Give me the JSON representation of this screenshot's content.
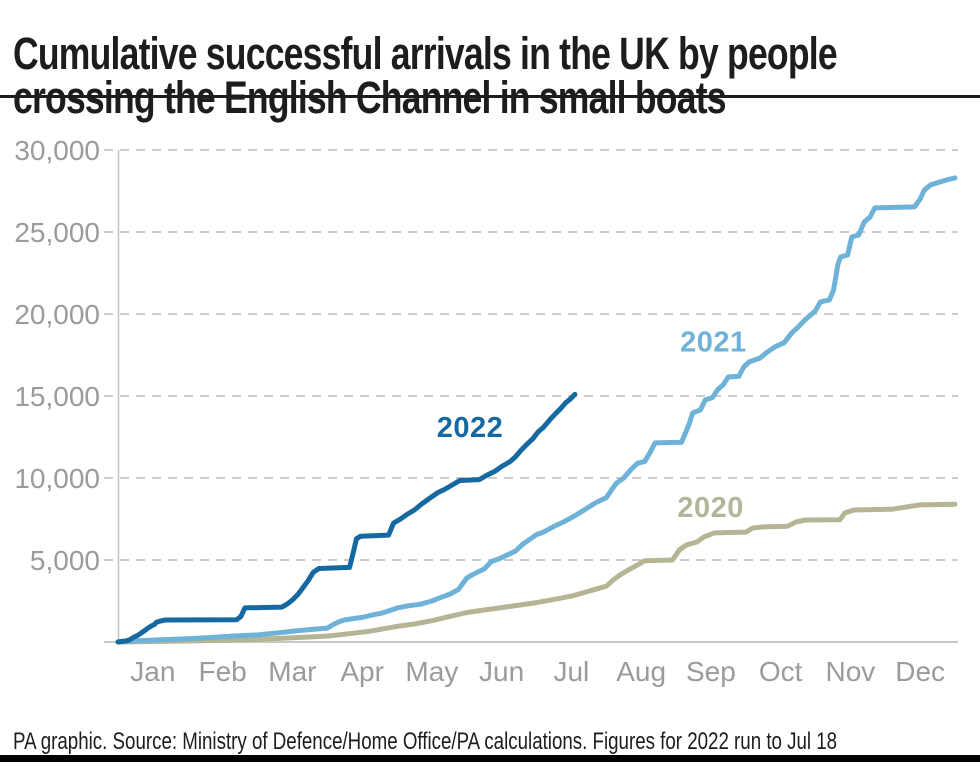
{
  "header": {
    "title_line1": "Cumulative successful arrivals in the UK by people",
    "title_line2": "crossing the English Channel in small boats"
  },
  "footer": {
    "source": "PA graphic. Source: Ministry of Defence/Home Office/PA calculations. Figures for 2022 run to Jul 18"
  },
  "colors": {
    "title_text": "#1d1d1b",
    "axis_text": "#9b9b9b",
    "gridline": "#cccccc",
    "axis_line": "#c2c2c2",
    "baseline": "#c9c9c9",
    "series_2022": "#1668a0",
    "series_2021": "#6fb2d8",
    "series_2020": "#b5b596",
    "bottom_bar": "#000000"
  },
  "chart_data": {
    "type": "line",
    "title": "Cumulative successful arrivals in the UK by people crossing the English Channel in small boats",
    "xlabel": "",
    "ylabel": "",
    "x_unit": "months (0 = Jan 1, 12 = Dec 31)",
    "xlim": [
      0,
      12
    ],
    "ylim": [
      0,
      30000
    ],
    "grid": "dashed horizontal gridlines",
    "legend": "inline year labels next to lines",
    "x_tick_labels": [
      "Jan",
      "Feb",
      "Mar",
      "Apr",
      "May",
      "Jun",
      "Jul",
      "Aug",
      "Sep",
      "Oct",
      "Nov",
      "Dec"
    ],
    "y_ticks": [
      {
        "value": 5000,
        "label": "5,000"
      },
      {
        "value": 10000,
        "label": "10,000"
      },
      {
        "value": 15000,
        "label": "15,000"
      },
      {
        "value": 20000,
        "label": "20,000"
      },
      {
        "value": 25000,
        "label": "25,000"
      },
      {
        "value": 30000,
        "label": "30,000"
      }
    ],
    "series": [
      {
        "name": "2020",
        "color": "#b5b596",
        "label": {
          "text": "2020",
          "x_month": 8.02,
          "y_value": 7620,
          "color": "#b3b49a"
        },
        "final_value": 8400,
        "points": [
          [
            0,
            0
          ],
          [
            0.5,
            30
          ],
          [
            1.0,
            60
          ],
          [
            1.5,
            110
          ],
          [
            2.0,
            160
          ],
          [
            2.5,
            260
          ],
          [
            3.0,
            360
          ],
          [
            3.3,
            500
          ],
          [
            3.6,
            650
          ],
          [
            4.0,
            950
          ],
          [
            4.25,
            1100
          ],
          [
            4.5,
            1300
          ],
          [
            4.75,
            1550
          ],
          [
            5.0,
            1800
          ],
          [
            5.25,
            1950
          ],
          [
            5.5,
            2100
          ],
          [
            5.75,
            2250
          ],
          [
            6.0,
            2400
          ],
          [
            6.25,
            2600
          ],
          [
            6.5,
            2800
          ],
          [
            6.75,
            3100
          ],
          [
            7.0,
            3400
          ],
          [
            7.1,
            3780
          ],
          [
            7.2,
            4100
          ],
          [
            7.32,
            4400
          ],
          [
            7.45,
            4700
          ],
          [
            7.55,
            4950
          ],
          [
            7.95,
            5000
          ],
          [
            8.05,
            5620
          ],
          [
            8.15,
            5920
          ],
          [
            8.3,
            6100
          ],
          [
            8.4,
            6410
          ],
          [
            8.55,
            6650
          ],
          [
            9.0,
            6700
          ],
          [
            9.1,
            6950
          ],
          [
            9.25,
            7020
          ],
          [
            9.6,
            7060
          ],
          [
            9.72,
            7320
          ],
          [
            9.85,
            7440
          ],
          [
            10.35,
            7450
          ],
          [
            10.42,
            7870
          ],
          [
            10.55,
            8050
          ],
          [
            11.1,
            8100
          ],
          [
            11.3,
            8230
          ],
          [
            11.5,
            8360
          ],
          [
            12.0,
            8400
          ]
        ]
      },
      {
        "name": "2021",
        "color": "#6fb2d8",
        "label": {
          "text": "2021",
          "x_month": 8.06,
          "y_value": 17700,
          "color": "#6fb2d8"
        },
        "final_value": 28300,
        "points": [
          [
            0,
            0
          ],
          [
            0.3,
            80
          ],
          [
            0.6,
            140
          ],
          [
            1.0,
            200
          ],
          [
            1.3,
            270
          ],
          [
            1.6,
            350
          ],
          [
            2.0,
            430
          ],
          [
            2.3,
            560
          ],
          [
            2.6,
            700
          ],
          [
            3.0,
            850
          ],
          [
            3.1,
            1100
          ],
          [
            3.18,
            1250
          ],
          [
            3.25,
            1350
          ],
          [
            3.5,
            1500
          ],
          [
            3.65,
            1650
          ],
          [
            3.8,
            1780
          ],
          [
            4.0,
            2070
          ],
          [
            4.15,
            2200
          ],
          [
            4.33,
            2300
          ],
          [
            4.5,
            2500
          ],
          [
            4.62,
            2700
          ],
          [
            4.75,
            2900
          ],
          [
            4.88,
            3200
          ],
          [
            5.0,
            3900
          ],
          [
            5.08,
            4100
          ],
          [
            5.15,
            4250
          ],
          [
            5.25,
            4450
          ],
          [
            5.35,
            4900
          ],
          [
            5.45,
            5050
          ],
          [
            5.6,
            5350
          ],
          [
            5.7,
            5550
          ],
          [
            5.8,
            5950
          ],
          [
            5.9,
            6250
          ],
          [
            6.0,
            6550
          ],
          [
            6.1,
            6700
          ],
          [
            6.25,
            7050
          ],
          [
            6.4,
            7350
          ],
          [
            6.55,
            7700
          ],
          [
            6.7,
            8100
          ],
          [
            6.85,
            8500
          ],
          [
            7.0,
            8800
          ],
          [
            7.08,
            9300
          ],
          [
            7.15,
            9700
          ],
          [
            7.25,
            10000
          ],
          [
            7.35,
            10500
          ],
          [
            7.45,
            10900
          ],
          [
            7.55,
            11000
          ],
          [
            7.62,
            11500
          ],
          [
            7.7,
            12140
          ],
          [
            8.08,
            12180
          ],
          [
            8.18,
            13200
          ],
          [
            8.24,
            13970
          ],
          [
            8.35,
            14150
          ],
          [
            8.42,
            14760
          ],
          [
            8.52,
            14900
          ],
          [
            8.6,
            15400
          ],
          [
            8.68,
            15700
          ],
          [
            8.75,
            16160
          ],
          [
            8.9,
            16200
          ],
          [
            8.97,
            16770
          ],
          [
            9.05,
            17080
          ],
          [
            9.2,
            17300
          ],
          [
            9.3,
            17650
          ],
          [
            9.42,
            18000
          ],
          [
            9.55,
            18250
          ],
          [
            9.65,
            18800
          ],
          [
            9.75,
            19200
          ],
          [
            9.85,
            19640
          ],
          [
            10.0,
            20200
          ],
          [
            10.07,
            20740
          ],
          [
            10.2,
            20860
          ],
          [
            10.26,
            21470
          ],
          [
            10.32,
            23000
          ],
          [
            10.36,
            23480
          ],
          [
            10.46,
            23600
          ],
          [
            10.52,
            24700
          ],
          [
            10.62,
            24820
          ],
          [
            10.7,
            25620
          ],
          [
            10.78,
            25900
          ],
          [
            10.85,
            26470
          ],
          [
            11.42,
            26530
          ],
          [
            11.5,
            27000
          ],
          [
            11.56,
            27560
          ],
          [
            11.65,
            27870
          ],
          [
            11.78,
            28050
          ],
          [
            11.9,
            28200
          ],
          [
            12.0,
            28300
          ]
        ]
      },
      {
        "name": "2022",
        "color": "#1668a0",
        "label": {
          "text": "2022",
          "x_month": 4.57,
          "y_value": 12500,
          "color": "#1668a0"
        },
        "final_value": 15100,
        "note": "runs to Jul 18",
        "points": [
          [
            0,
            0
          ],
          [
            0.1,
            60
          ],
          [
            0.16,
            120
          ],
          [
            0.23,
            300
          ],
          [
            0.29,
            420
          ],
          [
            0.35,
            600
          ],
          [
            0.42,
            820
          ],
          [
            0.45,
            900
          ],
          [
            0.48,
            980
          ],
          [
            0.52,
            1060
          ],
          [
            0.55,
            1200
          ],
          [
            0.61,
            1280
          ],
          [
            0.68,
            1340
          ],
          [
            1.7,
            1360
          ],
          [
            1.76,
            1550
          ],
          [
            1.82,
            2080
          ],
          [
            2.35,
            2130
          ],
          [
            2.42,
            2300
          ],
          [
            2.5,
            2560
          ],
          [
            2.58,
            2900
          ],
          [
            2.65,
            3300
          ],
          [
            2.72,
            3700
          ],
          [
            2.8,
            4250
          ],
          [
            2.88,
            4480
          ],
          [
            3.32,
            4550
          ],
          [
            3.38,
            5600
          ],
          [
            3.42,
            6300
          ],
          [
            3.48,
            6450
          ],
          [
            3.88,
            6520
          ],
          [
            3.95,
            7250
          ],
          [
            4.05,
            7500
          ],
          [
            4.15,
            7800
          ],
          [
            4.25,
            8050
          ],
          [
            4.35,
            8400
          ],
          [
            4.48,
            8800
          ],
          [
            4.58,
            9100
          ],
          [
            4.68,
            9300
          ],
          [
            4.8,
            9600
          ],
          [
            4.9,
            9850
          ],
          [
            5.18,
            9900
          ],
          [
            5.28,
            10150
          ],
          [
            5.4,
            10400
          ],
          [
            5.5,
            10700
          ],
          [
            5.62,
            11000
          ],
          [
            5.7,
            11300
          ],
          [
            5.78,
            11700
          ],
          [
            5.85,
            12000
          ],
          [
            5.95,
            12400
          ],
          [
            6.02,
            12800
          ],
          [
            6.1,
            13100
          ],
          [
            6.2,
            13600
          ],
          [
            6.28,
            13950
          ],
          [
            6.35,
            14250
          ],
          [
            6.42,
            14600
          ],
          [
            6.48,
            14800
          ],
          [
            6.55,
            15100
          ]
        ]
      }
    ]
  }
}
